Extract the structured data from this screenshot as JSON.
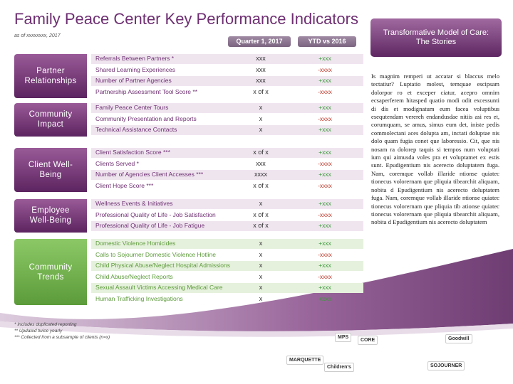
{
  "header": {
    "title": "Family Peace Center Key Performance Indicators",
    "subtitle": "as of xxxxxxxx, 2017"
  },
  "columns": [
    "Quarter 1, 2017",
    "YTD vs 2016"
  ],
  "sections": [
    {
      "label": "Partner Relationships",
      "rows": [
        [
          "Referrals Between Partners *",
          "xxx",
          "+xxx"
        ],
        [
          "Shared Learning Experiences",
          "xxx",
          "-xxxx"
        ],
        [
          "Number of Partner Agencies",
          "xxx",
          "+xxx"
        ],
        [
          "Partnership Assessment Tool Score **",
          "x of x",
          "-xxxx"
        ]
      ]
    },
    {
      "label": "Community Impact",
      "rows": [
        [
          "Family Peace Center Tours",
          "x",
          "+xxx"
        ],
        [
          "Community Presentation and Reports",
          "x",
          "-xxxx"
        ],
        [
          "Technical Assistance Contacts",
          "x",
          "+xxx"
        ]
      ]
    },
    {
      "label": "Client Well-Being",
      "rows": [
        [
          "Client Satisfaction Score ***",
          "x of x",
          "+xxx"
        ],
        [
          "Clients Served *",
          "xxx",
          "-xxxx"
        ],
        [
          "Number of Agencies Client Accesses ***",
          "xxxx",
          "+xxx"
        ],
        [
          "Client Hope Score ***",
          "x of x",
          "-xxxx"
        ]
      ]
    },
    {
      "label": "Employee Well-Being",
      "rows": [
        [
          "Wellness Events & Initiatives",
          "x",
          "+xxx"
        ],
        [
          "Professional Quality of Life - Job Satisfaction",
          "x of x",
          "-xxxx"
        ],
        [
          "Professional Quality of Life - Job Fatigue",
          "x of x",
          "+xxx"
        ]
      ]
    },
    {
      "label": "Community Trends",
      "rows": [
        [
          "Domestic Violence Homicides",
          "x",
          "+xxx"
        ],
        [
          "Calls to Sojourner Domestic Violence Hotline",
          "x",
          "-xxxx"
        ],
        [
          "Child Physical Abuse/Neglect Hospital Admissions",
          "x",
          "+xxx"
        ],
        [
          "Child Abuse/Neglect Reports",
          "x",
          "-xxxx"
        ],
        [
          "Sexual Assault Victims Accessing Medical Care",
          "x",
          "+xxx"
        ],
        [
          "Human Trafficking Investigations",
          "x",
          "+xxx"
        ]
      ]
    }
  ],
  "story": {
    "title": "Transformative Model of Care: The Stories",
    "body": "Is magnim remperi ut accatar si blaccus melo tectatiur? Luptatio molest, temquae escipsam dolorpor ro et exceper ciatur, acepro omnim ecsaperferem hitasped quatio modi odit excessunti di dis et modignatum eum facea voluptibus esequtendam verereh endandusdae nitiis asi res et, corumquam, se amus, simus eum det, iniste pedis commolectani aces dolupta am, inctati doluptae nis dolo quam fugia conet que laboressio. Cit, que nis nosam ra dolorep taquis si tempos num voluptati ium qui aimusda voles pra et voluptamet ex estis sunt. Epudigentium nis acerecto doluptatem fuga. Nam, coremque vollab illaride ntionse quiatec tionecus volorernam que pliquia tibearchit aliquam, nobita d Epudigentium nis acerecto doluptatem fuga. Nam, coremque vollab illaride ntionse quiatec tionecus volorernam que pliquia tib ationse quiatec tionecus volorernam que pliquia tibearchit aliquam, nobita d Epudigentium nis acerecto doluptatem"
  },
  "footnotes": [
    "* Includes duplicated reporting",
    "** Updated twice yearly",
    "*** Collected from a subsample of clients (n=x)"
  ],
  "logos": [
    "MPS",
    "CORE",
    "Goodwill",
    "MARQUETTE",
    "Children's",
    "SOJOURNER"
  ]
}
